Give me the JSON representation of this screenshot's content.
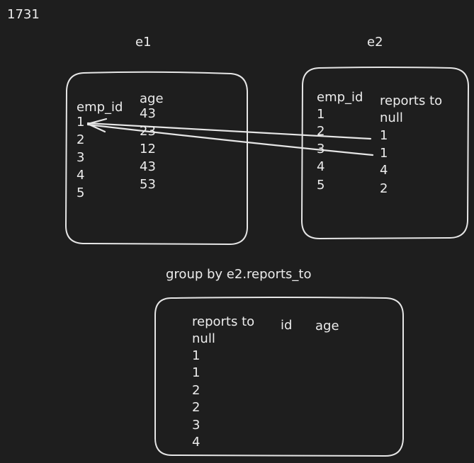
{
  "header": {
    "label": "1731"
  },
  "e1": {
    "title": "e1",
    "col_emp_id": "emp_id",
    "col_age": "age",
    "emp_ids": [
      "1",
      "2",
      "3",
      "4",
      "5"
    ],
    "ages": [
      "43",
      "23",
      "12",
      "43",
      "53"
    ]
  },
  "e2": {
    "title": "e2",
    "col_emp_id": "emp_id",
    "col_reports_to": "reports to",
    "emp_ids": [
      "1",
      "2",
      "3",
      "4",
      "5"
    ],
    "reports_to": [
      "null",
      "1",
      "1",
      "4",
      "2"
    ]
  },
  "group_by": {
    "caption": "group by e2.reports_to",
    "col_reports_to": "reports to",
    "col_id": "id",
    "col_age": "age",
    "reports_to": [
      "null",
      "1",
      "1",
      "2",
      "2",
      "3",
      "4"
    ]
  }
}
